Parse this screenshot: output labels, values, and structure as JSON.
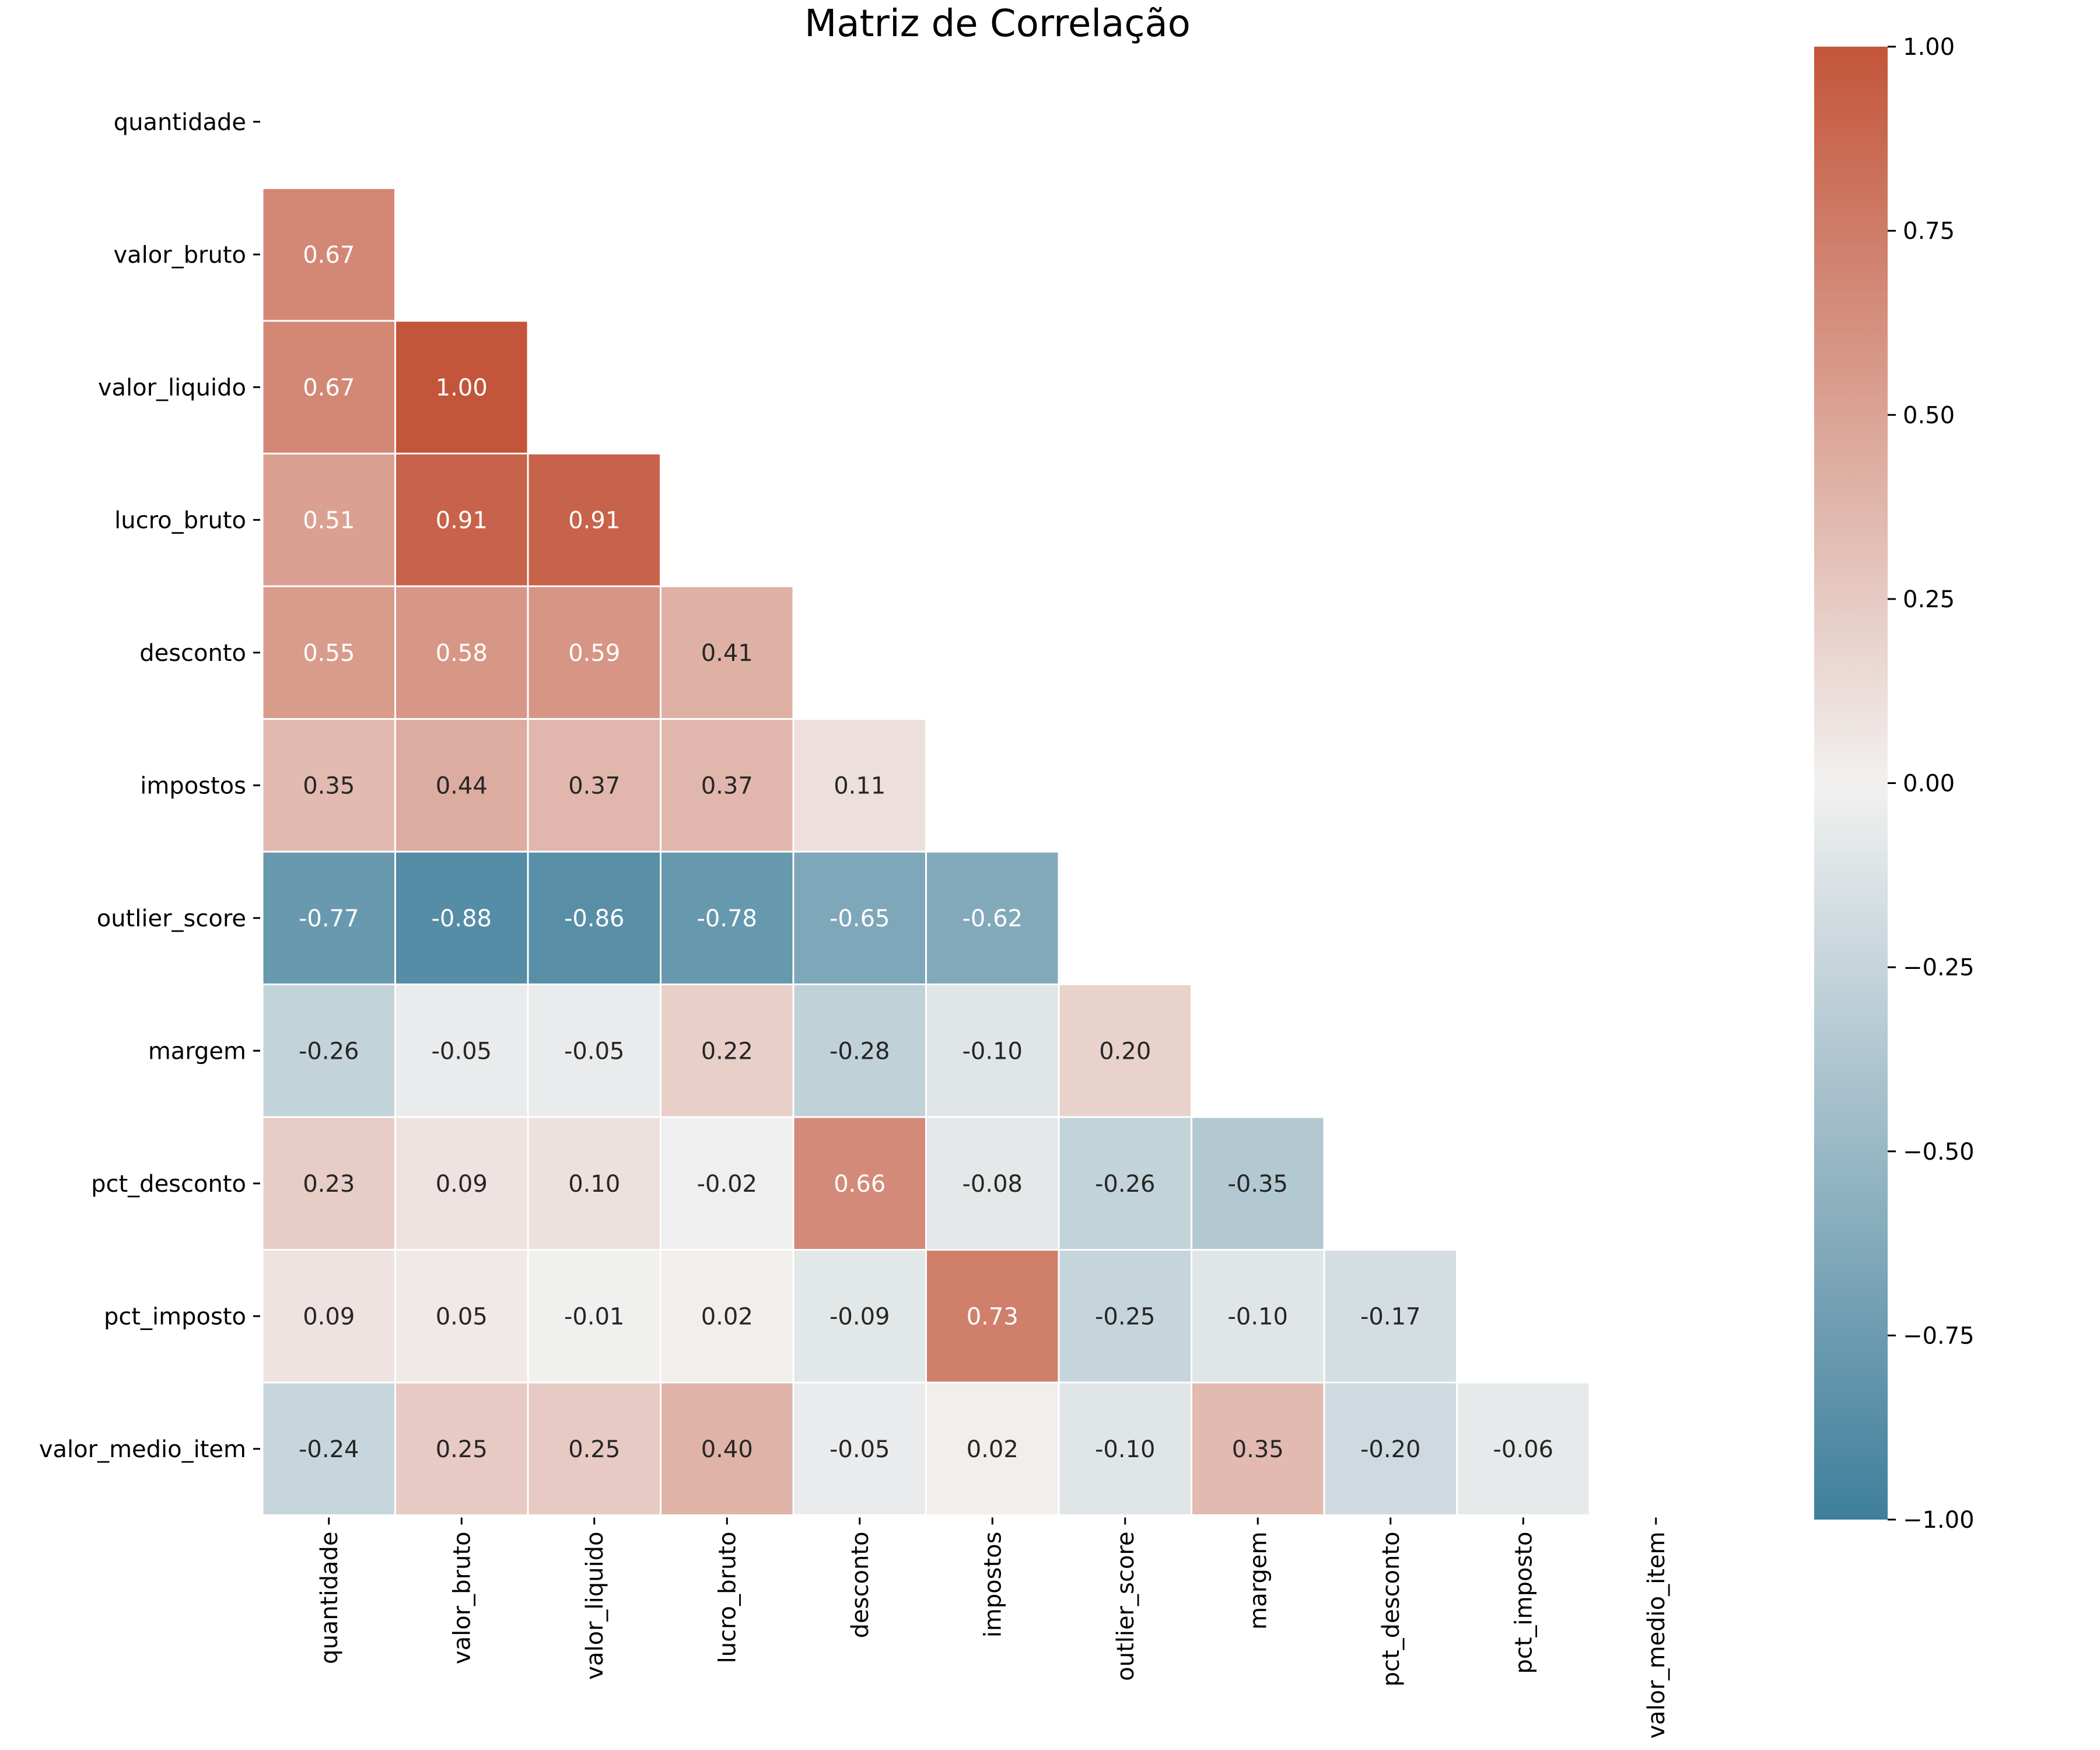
{
  "chart_data": {
    "type": "heatmap",
    "title": "Matriz de Correlação",
    "variables": [
      "quantidade",
      "valor_bruto",
      "valor_liquido",
      "lucro_bruto",
      "desconto",
      "impostos",
      "outlier_score",
      "margem",
      "pct_desconto",
      "pct_imposto",
      "valor_medio_item"
    ],
    "mask": "upper-triangle-including-diagonal",
    "values": [
      [
        null,
        null,
        null,
        null,
        null,
        null,
        null,
        null,
        null,
        null,
        null
      ],
      [
        0.67,
        null,
        null,
        null,
        null,
        null,
        null,
        null,
        null,
        null,
        null
      ],
      [
        0.67,
        1.0,
        null,
        null,
        null,
        null,
        null,
        null,
        null,
        null,
        null
      ],
      [
        0.51,
        0.91,
        0.91,
        null,
        null,
        null,
        null,
        null,
        null,
        null,
        null
      ],
      [
        0.55,
        0.58,
        0.59,
        0.41,
        null,
        null,
        null,
        null,
        null,
        null,
        null
      ],
      [
        0.35,
        0.44,
        0.37,
        0.37,
        0.11,
        null,
        null,
        null,
        null,
        null,
        null
      ],
      [
        -0.77,
        -0.88,
        -0.86,
        -0.78,
        -0.65,
        -0.62,
        null,
        null,
        null,
        null,
        null
      ],
      [
        -0.26,
        -0.05,
        -0.05,
        0.22,
        -0.28,
        -0.1,
        0.2,
        null,
        null,
        null,
        null
      ],
      [
        0.23,
        0.09,
        0.1,
        -0.02,
        0.66,
        -0.08,
        -0.26,
        -0.35,
        null,
        null,
        null
      ],
      [
        0.09,
        0.05,
        -0.01,
        0.02,
        -0.09,
        0.73,
        -0.25,
        -0.1,
        -0.17,
        null,
        null
      ],
      [
        -0.24,
        0.25,
        0.25,
        0.4,
        -0.05,
        0.02,
        -0.1,
        0.35,
        -0.2,
        -0.06,
        null
      ]
    ],
    "colorbar": {
      "range": [
        -1.0,
        1.0
      ],
      "ticks": [
        "1.00",
        "0.75",
        "0.50",
        "0.25",
        "0.00",
        "−0.25",
        "−0.50",
        "−0.75",
        "−1.00"
      ],
      "tick_values": [
        1.0,
        0.75,
        0.5,
        0.25,
        0.0,
        -0.25,
        -0.5,
        -0.75,
        -1.0
      ]
    },
    "colors": {
      "negative": "#3f7f9b",
      "neutral": "#f2f1f0",
      "positive": "#c3553a",
      "text_light": "#ffffff",
      "text_dark": "#262626"
    }
  }
}
